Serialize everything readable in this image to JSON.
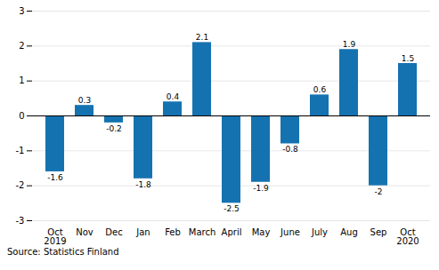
{
  "chart_data": {
    "type": "bar",
    "caption": "Source: Statistics Finland",
    "categories": [
      "Oct\n2019",
      "Nov",
      "Dec",
      "Jan",
      "Feb",
      "March",
      "April",
      "May",
      "June",
      "July",
      "Aug",
      "Sep",
      "Oct\n2020"
    ],
    "values": [
      -1.6,
      0.3,
      -0.2,
      -1.8,
      0.4,
      2.1,
      -2.5,
      -1.9,
      -0.8,
      0.6,
      1.9,
      -2.0,
      1.5
    ],
    "color": "#1472b0",
    "ylim": [
      -3,
      3
    ],
    "yticks": [
      -3,
      -2,
      -1,
      0,
      1,
      2,
      3
    ],
    "grid": true,
    "data_labels": true
  }
}
